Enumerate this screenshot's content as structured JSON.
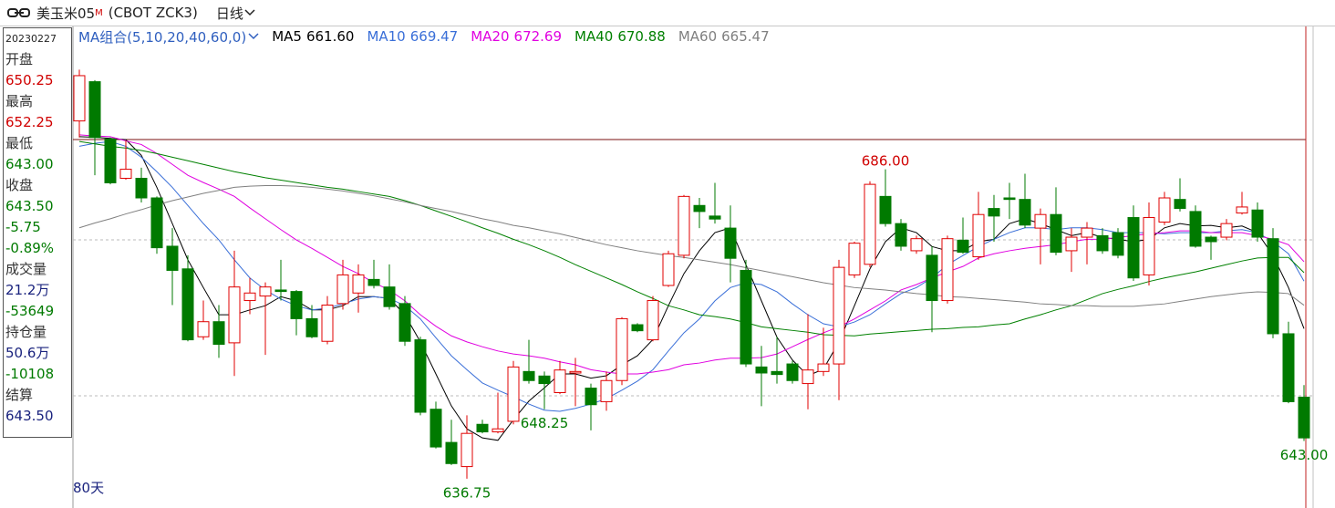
{
  "header": {
    "title": "美玉米05",
    "badge": "M",
    "code": "(CBOT ZCK3)",
    "period": "日线"
  },
  "info_panel": [
    {
      "text": "20230227",
      "color": "#222222"
    },
    {
      "text": "开盘",
      "color": "#333333"
    },
    {
      "text": "650.25",
      "color": "#d00000"
    },
    {
      "text": "最高",
      "color": "#333333"
    },
    {
      "text": "652.25",
      "color": "#d00000"
    },
    {
      "text": "最低",
      "color": "#333333"
    },
    {
      "text": "643.00",
      "color": "#007a00"
    },
    {
      "text": "收盘",
      "color": "#333333"
    },
    {
      "text": "643.50",
      "color": "#007a00"
    },
    {
      "text": "-5.75",
      "color": "#007a00"
    },
    {
      "text": "-0.89%",
      "color": "#007a00"
    },
    {
      "text": "成交量",
      "color": "#333333"
    },
    {
      "text": "21.2万",
      "color": "#1a237e"
    },
    {
      "text": "-53649",
      "color": "#007a00"
    },
    {
      "text": "持仓量",
      "color": "#333333"
    },
    {
      "text": "50.6万",
      "color": "#1a237e"
    },
    {
      "text": "-10108",
      "color": "#007a00"
    },
    {
      "text": "结算",
      "color": "#333333"
    },
    {
      "text": "643.50",
      "color": "#1a237e"
    }
  ],
  "chart_data": {
    "type": "candlestick",
    "ma_title": "MA组合(5,10,20,40,60,0)",
    "period_label": "80天",
    "up_color": "#e00000",
    "down_color": "#007a00",
    "ylim": [
      633.25,
      711.5
    ],
    "open": [
      696,
      702.5,
      693,
      686.5,
      686.5,
      683.25,
      675.25,
      671.5,
      660.25,
      662.75,
      659.25,
      666.25,
      667,
      668,
      667.75,
      663.25,
      659.5,
      665.75,
      667.5,
      669.75,
      668.5,
      665.75,
      659.75,
      648.25,
      642.75,
      638.75,
      645.75,
      644.5,
      646.25,
      654.5,
      653.75,
      651,
      654.25,
      651.75,
      649.5,
      653,
      662.25,
      659.75,
      668.75,
      673.75,
      682,
      680.25,
      678.25,
      671.25,
      655.25,
      654.5,
      655.75,
      652.5,
      654.5,
      655.75,
      670.5,
      672.25,
      683.5,
      679,
      674.5,
      673.75,
      666.25,
      676.25,
      673.5,
      681.5,
      683.25,
      683,
      678.25,
      680.5,
      674.5,
      676.75,
      677,
      677.5,
      680,
      670.5,
      679.25,
      683,
      681,
      676.75,
      676.75,
      680.75,
      681.25,
      676.5,
      660.75,
      650.25
    ],
    "high": [
      704.5,
      702.75,
      693.25,
      692.75,
      688.25,
      683.5,
      678.25,
      673.75,
      666.25,
      665.5,
      674.5,
      670,
      669.25,
      673,
      668,
      665.5,
      667,
      673,
      672.25,
      673,
      672.25,
      667,
      660.25,
      649.5,
      646.5,
      647.25,
      646.5,
      651,
      656.25,
      659.75,
      654.5,
      656.25,
      656.75,
      652.5,
      654.5,
      663.5,
      662.5,
      667,
      674.5,
      683.75,
      683.25,
      685.75,
      682,
      673,
      658.75,
      660.25,
      656.25,
      664,
      661.75,
      673,
      676,
      686,
      688,
      679.75,
      677,
      675.25,
      677,
      680,
      684.25,
      683.75,
      685.75,
      687.25,
      681.5,
      685,
      678.25,
      679.25,
      678.25,
      678.25,
      682,
      682.5,
      684.25,
      686.5,
      682,
      677,
      679.75,
      684.25,
      682.5,
      678.25,
      662.75,
      652.25
    ],
    "low": [
      693.25,
      687,
      685.5,
      686.25,
      682.5,
      674,
      665.5,
      659.5,
      659.75,
      656.75,
      653.75,
      664,
      657.25,
      666.25,
      660.5,
      660,
      659,
      664.75,
      664.25,
      668.25,
      664.75,
      658.75,
      647.25,
      641.75,
      639,
      636.75,
      644.25,
      644.25,
      645.75,
      652.5,
      648.25,
      650.75,
      648.75,
      644.75,
      648,
      652.25,
      661,
      659.5,
      668.5,
      673.25,
      678.25,
      679,
      669.25,
      655.25,
      648.75,
      652.5,
      652.5,
      648.25,
      653.75,
      649.75,
      670,
      671.75,
      678.5,
      674.5,
      674,
      661,
      665.75,
      674,
      673,
      676,
      679.75,
      678.25,
      672.25,
      673.75,
      671,
      672.25,
      674,
      673.25,
      669.5,
      668.75,
      678.75,
      681,
      675,
      673,
      676.25,
      680.5,
      676,
      660,
      649.25,
      643
    ],
    "close": [
      703.5,
      693.25,
      685.75,
      688,
      683.25,
      675,
      671.25,
      659.75,
      662.75,
      659,
      668.5,
      667.5,
      668.5,
      667.75,
      663.25,
      660.25,
      665.5,
      670.5,
      670.5,
      668.75,
      665.25,
      659.5,
      647.75,
      642,
      639.25,
      644.25,
      644.5,
      645,
      655.25,
      653,
      652.5,
      654.75,
      654.5,
      649,
      653,
      663.25,
      661.25,
      666.25,
      674,
      683.5,
      681,
      679.75,
      673.25,
      655.75,
      654.25,
      654,
      653,
      654.75,
      655.75,
      671.75,
      675.75,
      685.5,
      679,
      675.25,
      676.5,
      666.25,
      676.5,
      674.25,
      680.5,
      680.25,
      683,
      678.75,
      680.5,
      674.25,
      676.75,
      678.25,
      674.5,
      673.75,
      670,
      680,
      683.25,
      681.5,
      675.25,
      676,
      679,
      681.75,
      676.75,
      660.75,
      649.5,
      643.5
    ],
    "series": [
      {
        "name": "MA5",
        "color": "#000000",
        "last_label": "661.60",
        "values": [
          693.4,
          693.3,
          693.1,
          692.9,
          690.3,
          685,
          679,
          673,
          668.4,
          663.9,
          663.9,
          664.7,
          665.4,
          666.9,
          666.2,
          664.7,
          664.7,
          665.4,
          666.9,
          666.9,
          666.6,
          663.9,
          659.4,
          654.1,
          648.8,
          645,
          643.5,
          643.1,
          646.5,
          649.6,
          651.8,
          654.1,
          654.1,
          653.4,
          653.8,
          655.6,
          657.1,
          659.8,
          665.4,
          670.7,
          674.5,
          677.5,
          678.3,
          672.2,
          666.2,
          660.2,
          656.4,
          653.8,
          654.9,
          659.4,
          665.4,
          671.5,
          676,
          678.3,
          677.5,
          675.2,
          674.5,
          674.5,
          676,
          676.4,
          679,
          679.8,
          679,
          678,
          677,
          677.5,
          676.7,
          676.4,
          676,
          676.4,
          678.3,
          679,
          678.6,
          678.7,
          678.3,
          678.6,
          677.5,
          673.7,
          668.4,
          661.6
        ]
      },
      {
        "name": "MA10",
        "color": "#3a6fd8",
        "last_label": "669.47",
        "values": [
          691.8,
          692.3,
          692.6,
          691.8,
          690,
          687.6,
          685,
          682,
          679,
          676.3,
          673,
          670,
          668,
          666.5,
          665.4,
          664.7,
          665,
          665.7,
          666.5,
          666.9,
          666.6,
          665.4,
          663.2,
          660.1,
          657.1,
          654.8,
          652.6,
          651.4,
          650.3,
          649.1,
          648.1,
          647.9,
          648.4,
          649.1,
          650,
          651.4,
          652.9,
          654.8,
          657.9,
          660.9,
          663.2,
          666.2,
          668.4,
          669.2,
          668.9,
          667.7,
          665.7,
          663.9,
          662.4,
          661.9,
          662.7,
          663.9,
          665.7,
          667.4,
          668.4,
          670,
          672.2,
          673.7,
          675.2,
          676.4,
          677.5,
          678.3,
          678.3,
          678,
          678.3,
          678.3,
          678,
          677.5,
          677.5,
          677.5,
          677.3,
          677.5,
          677.5,
          677.5,
          677.8,
          678,
          677.5,
          676,
          674,
          669.47
        ]
      },
      {
        "name": "MA20",
        "color": "#e000e0",
        "last_label": "672.69",
        "values": [
          693.7,
          693.5,
          693.4,
          692.7,
          692.1,
          690.6,
          688.8,
          687,
          685.8,
          684.7,
          683.5,
          681.6,
          679.8,
          678,
          676.3,
          674.9,
          673.4,
          671.9,
          670.7,
          669.2,
          668,
          666.2,
          663.9,
          662,
          660.4,
          659.4,
          658.6,
          657.9,
          657.4,
          657.1,
          656.7,
          656.1,
          655.6,
          654.8,
          654.4,
          654.1,
          654.1,
          654.4,
          654.8,
          655.6,
          655.9,
          656.4,
          656.7,
          656.7,
          656.8,
          657.4,
          658.6,
          659.8,
          660.9,
          661.9,
          663.2,
          664.7,
          666.2,
          668,
          668.9,
          670,
          671,
          671.9,
          673.3,
          674,
          674.5,
          674.9,
          675.2,
          675.5,
          676,
          676.4,
          676.4,
          676.7,
          677,
          677.3,
          677.5,
          677.8,
          677.8,
          677.5,
          677.5,
          677.5,
          677,
          676.4,
          675.5,
          672.69
        ]
      },
      {
        "name": "MA40",
        "color": "#008000",
        "last_label": "670.88",
        "values": [
          692.6,
          692.2,
          691.8,
          691.5,
          691.1,
          690.6,
          690,
          689.4,
          688.8,
          688.2,
          687.6,
          687.1,
          686.6,
          686.2,
          685.8,
          685.4,
          685,
          684.7,
          684.3,
          683.9,
          683.5,
          682.8,
          682,
          681.1,
          680.2,
          679.3,
          678.3,
          677.4,
          676.4,
          675.5,
          674.5,
          673.4,
          672.2,
          671.1,
          670,
          668.9,
          667.7,
          666.6,
          665.4,
          664.7,
          663.9,
          663.6,
          663.2,
          662.6,
          661.9,
          661.6,
          661.3,
          661,
          660.6,
          660.5,
          660.4,
          660.7,
          660.9,
          661.1,
          661.3,
          661.5,
          661.6,
          661.8,
          661.9,
          662.2,
          662.4,
          663.2,
          663.9,
          664.7,
          665.4,
          666.4,
          667.4,
          668.1,
          668.7,
          669.4,
          670,
          670.5,
          671,
          671.6,
          672.2,
          672.8,
          673.3,
          673.4,
          673.4,
          670.88
        ]
      },
      {
        "name": "MA60",
        "color": "#808080",
        "last_label": "665.47",
        "values": [
          678.3,
          679.1,
          679.8,
          680.6,
          681.3,
          682.1,
          682.8,
          683.4,
          684,
          684.5,
          685,
          685.2,
          685.3,
          685.3,
          685.2,
          685,
          684.7,
          684.4,
          684,
          683.6,
          683.1,
          682.6,
          682,
          681.5,
          681,
          680.4,
          679.8,
          679.3,
          678.7,
          678.3,
          677.8,
          677.3,
          676.7,
          676.1,
          675.5,
          675,
          674.5,
          674.1,
          673.7,
          673.4,
          673,
          672.6,
          672.2,
          671.7,
          671.2,
          670.7,
          670.2,
          669.7,
          669.2,
          668.8,
          668.4,
          668.2,
          668,
          667.7,
          667.4,
          667.2,
          666.9,
          666.8,
          666.6,
          666.4,
          666.2,
          666,
          665.7,
          665.6,
          665.4,
          665.4,
          665.3,
          665.3,
          665.3,
          665.5,
          665.7,
          666.1,
          666.5,
          666.9,
          667.2,
          667.5,
          667.7,
          667.6,
          667.4,
          665.47
        ]
      }
    ],
    "annotations": [
      {
        "text": "686.00",
        "value": 686,
        "color": "#d00000"
      },
      {
        "text": "636.75",
        "value": 636.75,
        "color": "#007a00"
      },
      {
        "text": "648.25",
        "value": 648.25,
        "color": "#007a00"
      },
      {
        "text": "643.00",
        "value": 643,
        "color": "#007a00"
      }
    ]
  }
}
